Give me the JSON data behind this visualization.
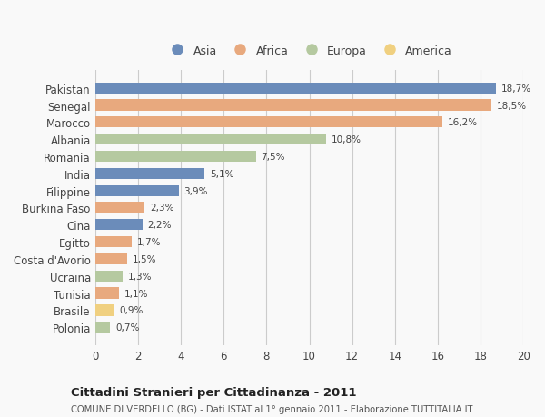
{
  "countries": [
    "Pakistan",
    "Senegal",
    "Marocco",
    "Albania",
    "Romania",
    "India",
    "Filippine",
    "Burkina Faso",
    "Cina",
    "Egitto",
    "Costa d'Avorio",
    "Ucraina",
    "Tunisia",
    "Brasile",
    "Polonia"
  ],
  "values": [
    18.7,
    18.5,
    16.2,
    10.8,
    7.5,
    5.1,
    3.9,
    2.3,
    2.2,
    1.7,
    1.5,
    1.3,
    1.1,
    0.9,
    0.7
  ],
  "labels": [
    "18,7%",
    "18,5%",
    "16,2%",
    "10,8%",
    "7,5%",
    "5,1%",
    "3,9%",
    "2,3%",
    "2,2%",
    "1,7%",
    "1,5%",
    "1,3%",
    "1,1%",
    "0,9%",
    "0,7%"
  ],
  "continents": [
    "Asia",
    "Africa",
    "Africa",
    "Europa",
    "Europa",
    "Asia",
    "Asia",
    "Africa",
    "Asia",
    "Africa",
    "Africa",
    "Europa",
    "Africa",
    "America",
    "Europa"
  ],
  "colors": {
    "Asia": "#6b8cba",
    "Africa": "#e8a97e",
    "Europa": "#b5c9a0",
    "America": "#f0d080"
  },
  "legend_order": [
    "Asia",
    "Africa",
    "Europa",
    "America"
  ],
  "title": "Cittadini Stranieri per Cittadinanza - 2011",
  "subtitle": "COMUNE DI VERDELLO (BG) - Dati ISTAT al 1° gennaio 2011 - Elaborazione TUTTITALIA.IT",
  "xlim": [
    0,
    20
  ],
  "xticks": [
    0,
    2,
    4,
    6,
    8,
    10,
    12,
    14,
    16,
    18,
    20
  ],
  "background_color": "#f9f9f9",
  "grid_color": "#cccccc"
}
